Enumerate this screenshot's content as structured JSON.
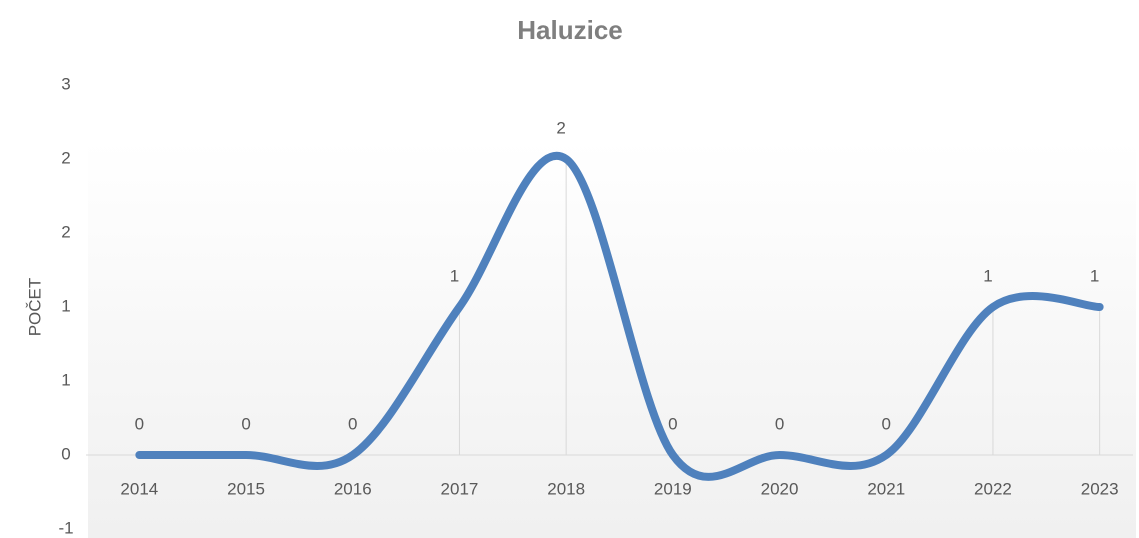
{
  "chart_data": {
    "type": "line",
    "title": "Haluzice",
    "y_label": "POČET",
    "categories": [
      "2014",
      "2015",
      "2016",
      "2017",
      "2018",
      "2019",
      "2020",
      "2021",
      "2022",
      "2023"
    ],
    "series": [
      {
        "name": "Haluzice",
        "color": "#4f81bd",
        "values": [
          0,
          0,
          0,
          1,
          2,
          0,
          0,
          0,
          1,
          1
        ]
      }
    ],
    "ylim": [
      -0.5,
      2.5
    ],
    "yticks": [
      {
        "value": -0.5,
        "label": "-1"
      },
      0,
      {
        "value": 0.5,
        "label": "1"
      },
      1,
      {
        "value": 1.5,
        "label": "2"
      },
      2,
      {
        "value": 2.5,
        "label": "3"
      }
    ],
    "smooth": true,
    "drop_lines": true,
    "data_labels": true
  }
}
